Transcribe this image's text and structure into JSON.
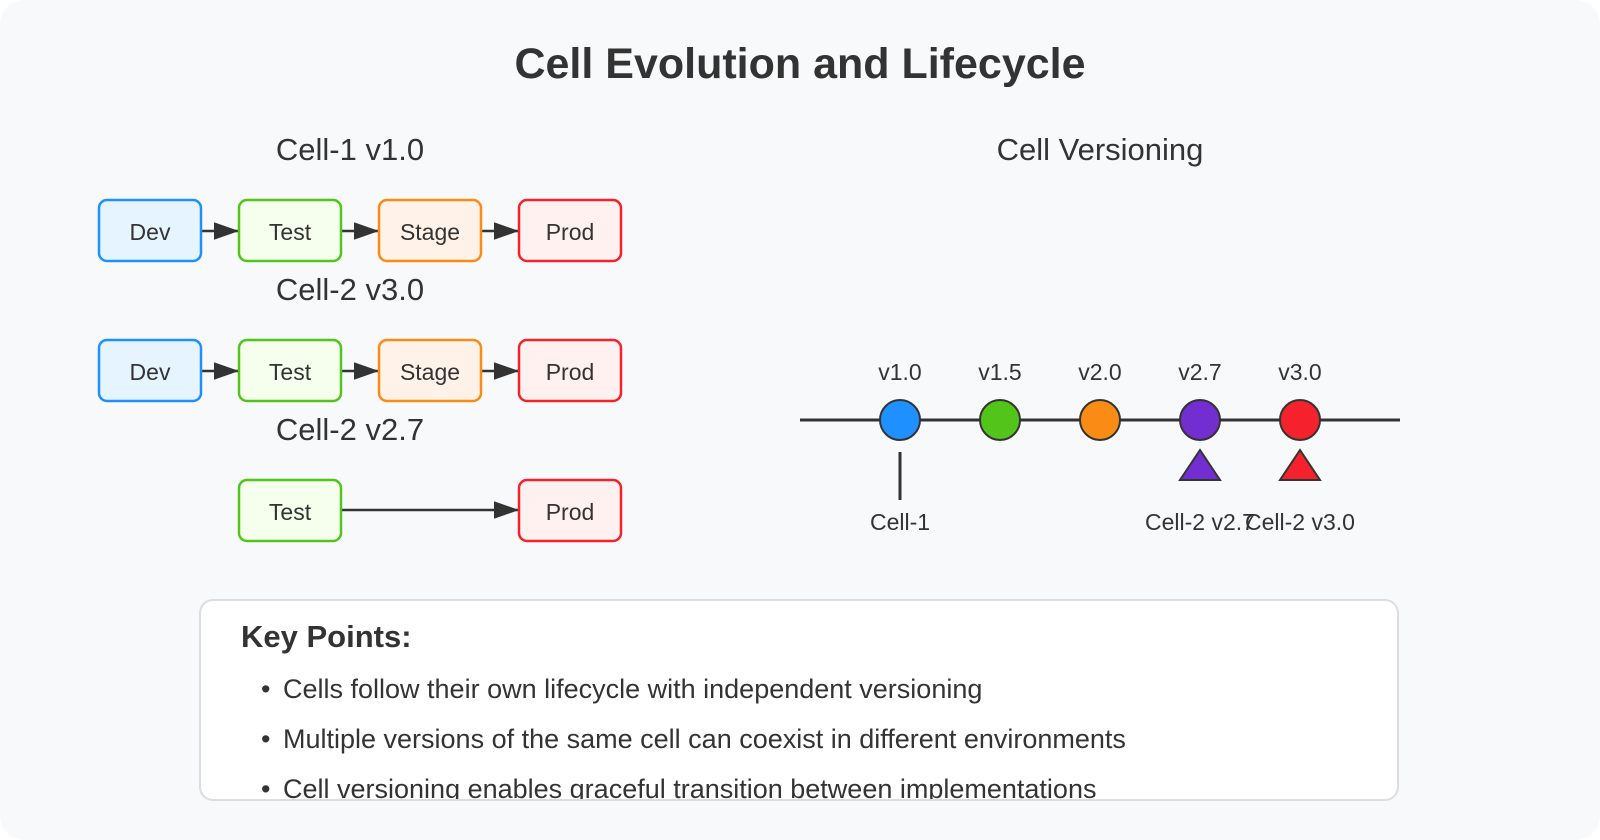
{
  "title": "Cell Evolution and Lifecycle",
  "lifecycle": {
    "rows": [
      {
        "heading": "Cell-1 v1.0",
        "stages": [
          "Dev",
          "Test",
          "Stage",
          "Prod"
        ]
      },
      {
        "heading": "Cell-2 v3.0",
        "stages": [
          "Dev",
          "Test",
          "Stage",
          "Prod"
        ]
      },
      {
        "heading": "Cell-2 v2.7",
        "stages": [
          "Test",
          "Prod"
        ]
      }
    ],
    "stage_colors": {
      "Dev": {
        "stroke": "#1e90ff",
        "fill": "#e6f4ff"
      },
      "Test": {
        "stroke": "#52c41a",
        "fill": "#f6ffed"
      },
      "Stage": {
        "stroke": "#fa8c16",
        "fill": "#fff2e8"
      },
      "Prod": {
        "stroke": "#f5222d",
        "fill": "#fff1f0"
      }
    }
  },
  "versioning": {
    "heading": "Cell Versioning",
    "versions": [
      {
        "label": "v1.0",
        "color": "#1e90ff"
      },
      {
        "label": "v1.5",
        "color": "#52c41a"
      },
      {
        "label": "v2.0",
        "color": "#fa8c16"
      },
      {
        "label": "v2.7",
        "color": "#722ed1"
      },
      {
        "label": "v3.0",
        "color": "#f5222d"
      }
    ],
    "markers": {
      "cell1": "Cell-1",
      "cell2_v27": "Cell-2 v2.7",
      "cell2_v30": "Cell-2 v3.0"
    }
  },
  "key_points": {
    "title": "Key Points:",
    "items": [
      "Cells follow their own lifecycle with independent versioning",
      "Multiple versions of the same cell can coexist in different environments",
      "Cell versioning enables graceful transition between implementations"
    ]
  }
}
